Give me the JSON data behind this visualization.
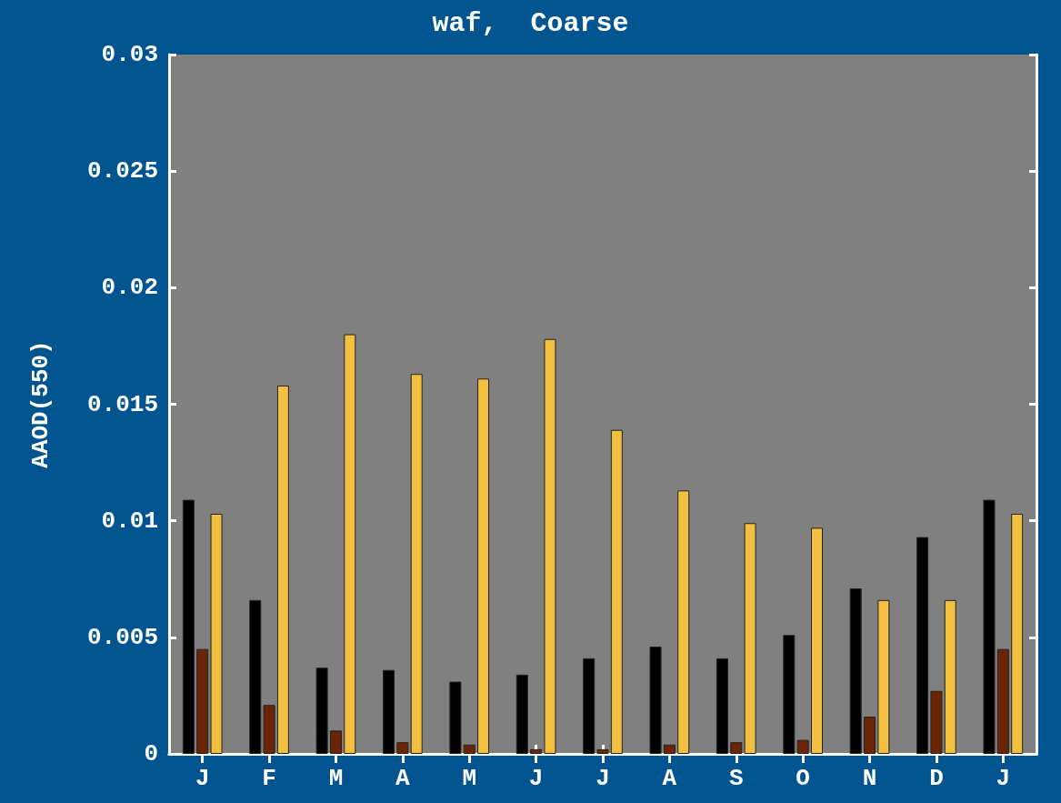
{
  "chart_data": {
    "type": "bar",
    "title": "waf,  Coarse",
    "ylabel": "AAOD(550)",
    "categories": [
      "J",
      "F",
      "M",
      "A",
      "M",
      "J",
      "J",
      "A",
      "S",
      "O",
      "N",
      "D",
      "J"
    ],
    "series": [
      {
        "color": "#000000",
        "values": [
          0.0109,
          0.0066,
          0.0037,
          0.0036,
          0.0031,
          0.0034,
          0.0041,
          0.0046,
          0.0041,
          0.0051,
          0.0071,
          0.0093,
          0.0109
        ]
      },
      {
        "color": "#6b2505",
        "values": [
          0.0045,
          0.0021,
          0.001,
          0.0005,
          0.0004,
          0.0002,
          0.0002,
          0.0004,
          0.0005,
          0.0006,
          0.0016,
          0.0027,
          0.0045
        ]
      },
      {
        "color": "#f2bf40",
        "values": [
          0.0103,
          0.0158,
          0.018,
          0.0163,
          0.0161,
          0.0178,
          0.0139,
          0.0113,
          0.0099,
          0.0097,
          0.0066,
          0.0066,
          0.0103
        ]
      }
    ],
    "ylim": [
      0,
      0.03
    ],
    "yticks": [
      0,
      0.005,
      0.01,
      0.015,
      0.02,
      0.025,
      0.03
    ],
    "grid": false
  }
}
